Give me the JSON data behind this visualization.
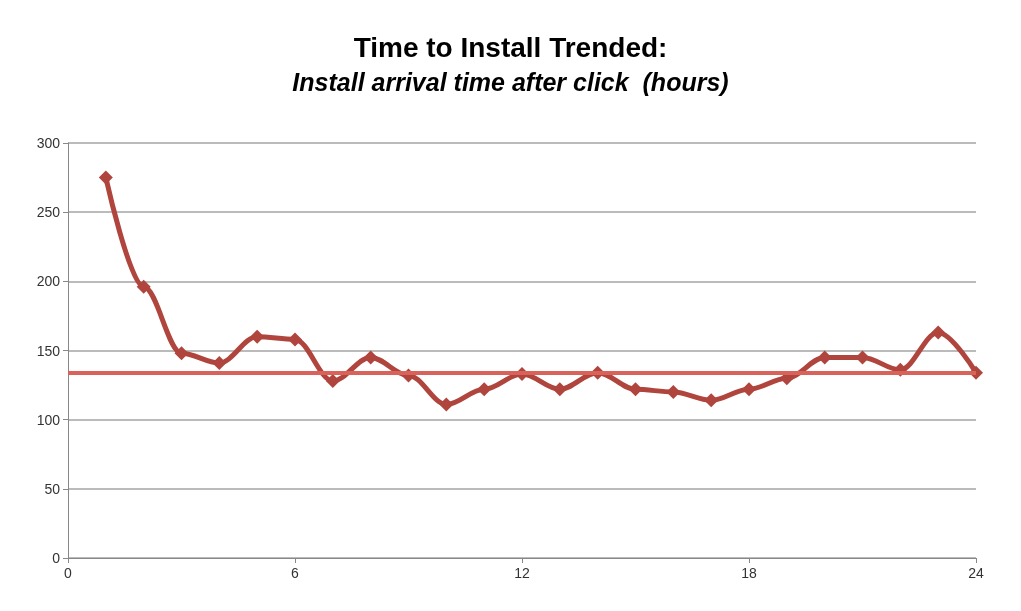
{
  "chart_data": {
    "type": "line",
    "title": "Time to Install Trended:",
    "subtitle": "Install arrival time after click  (hours)",
    "x": [
      1,
      2,
      3,
      4,
      5,
      6,
      7,
      8,
      9,
      10,
      11,
      12,
      13,
      14,
      15,
      16,
      17,
      18,
      19,
      20,
      21,
      22,
      23,
      24
    ],
    "series": [
      {
        "color": "#b0453e",
        "values": [
          275,
          196,
          148,
          141,
          160,
          158,
          128,
          145,
          132,
          111,
          122,
          133,
          122,
          134,
          122,
          120,
          114,
          122,
          130,
          145,
          145,
          136,
          163,
          134
        ]
      }
    ],
    "ref_lines": [
      {
        "axis": "y",
        "value": 134,
        "color": "#d9625a"
      }
    ],
    "xlim": [
      0,
      24
    ],
    "xticks": [
      0,
      6,
      12,
      18,
      24
    ],
    "ylim": [
      0,
      300
    ],
    "yticks": [
      0,
      50,
      100,
      150,
      200,
      250,
      300
    ],
    "grid": "y",
    "marker": "diamond",
    "line_style": "solid"
  }
}
